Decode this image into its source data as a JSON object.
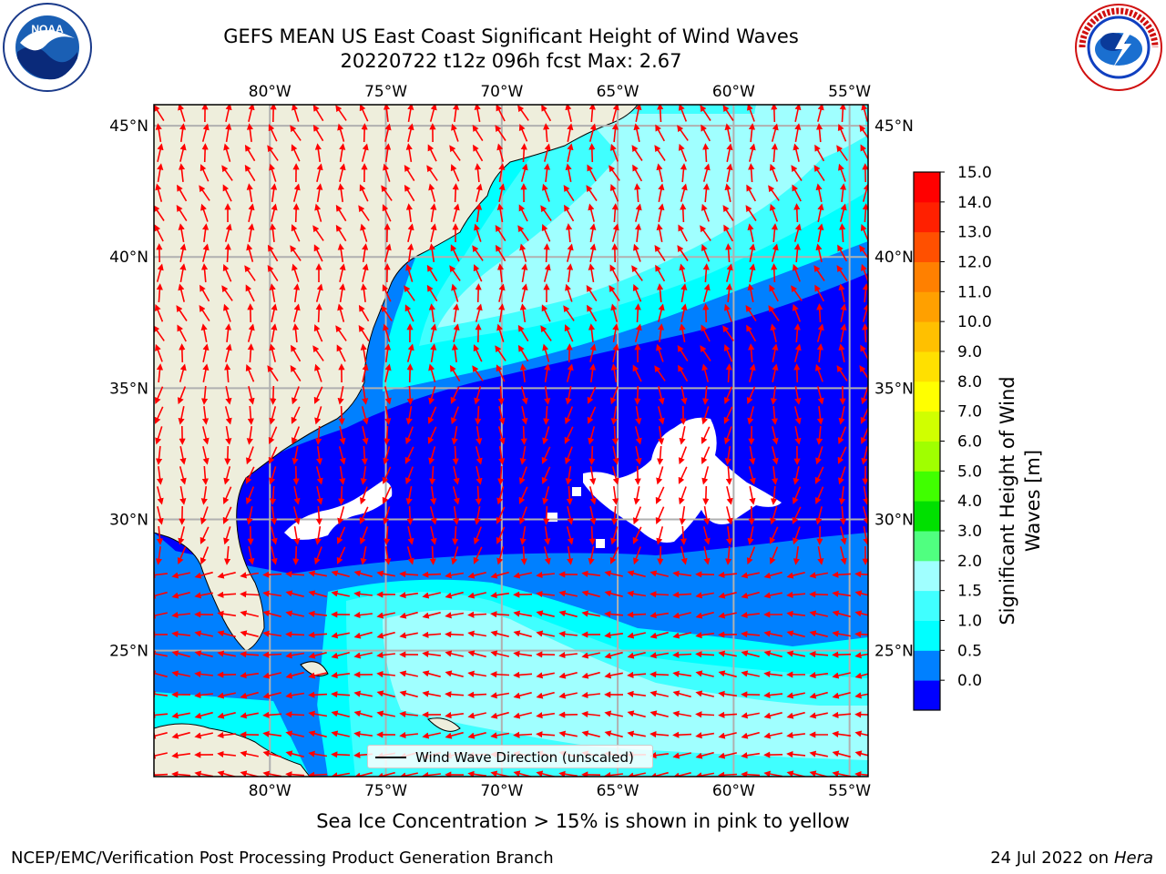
{
  "header": {
    "title_line1": "GEFS MEAN US East Coast Significant Height of Wind Waves",
    "title_line2": "20220722 t12z 096h fcst   Max: 2.67"
  },
  "logos": {
    "noaa": {
      "text": "NOAA",
      "ring_text": "NATIONAL OCEANIC AND ATMOSPHERIC ADMINISTRATION · U.S. DEPARTMENT OF COMMERCE"
    },
    "nws": {
      "ring_text": "NATIONAL WEATHER SERVICE"
    }
  },
  "map": {
    "lon_range": [
      -85,
      -54.2
    ],
    "lat_range": [
      20.2,
      45.8
    ],
    "lon_ticks": [
      {
        "value": -80,
        "label": "80°W"
      },
      {
        "value": -75,
        "label": "75°W"
      },
      {
        "value": -70,
        "label": "70°W"
      },
      {
        "value": -65,
        "label": "65°W"
      },
      {
        "value": -60,
        "label": "60°W"
      },
      {
        "value": -55,
        "label": "55°W"
      }
    ],
    "lat_ticks": [
      {
        "value": 45,
        "label": "45°N"
      },
      {
        "value": 40,
        "label": "40°N"
      },
      {
        "value": 35,
        "label": "35°N"
      },
      {
        "value": 30,
        "label": "30°N"
      },
      {
        "value": 25,
        "label": "25°N"
      }
    ],
    "colors": {
      "ocean": "#0000ff",
      "land": "#eeeedc",
      "grid": "#b0b0b0",
      "arrow": "#ff0000"
    },
    "legend": {
      "label": "Wind Wave Direction (unscaled)"
    }
  },
  "colorbar": {
    "label_line1": "Significant Height of Wind",
    "label_line2": "Waves [m]",
    "ticks": [
      "15.0",
      "14.0",
      "13.0",
      "12.0",
      "11.0",
      "10.0",
      "9.0",
      "8.0",
      "7.0",
      "6.0",
      "5.0",
      "4.0",
      "3.0",
      "2.0",
      "1.5",
      "1.0",
      "0.5",
      "0.0"
    ],
    "colors": [
      "#0000ff",
      "#0080ff",
      "#00ffff",
      "#40ffff",
      "#a0ffff",
      "#50ff80",
      "#00e000",
      "#40ff00",
      "#a0ff00",
      "#d0ff00",
      "#ffff00",
      "#ffe000",
      "#ffc000",
      "#ffa000",
      "#ff8000",
      "#ff5000",
      "#ff2000",
      "#ff0000"
    ]
  },
  "notes": {
    "sea_ice": "Sea Ice Concentration > 15% is shown in pink to yellow"
  },
  "footer": {
    "left": "NCEP/EMC/Verification Post Processing Product Generation Branch",
    "date": "24 Jul 2022 on ",
    "machine": "Hera"
  }
}
